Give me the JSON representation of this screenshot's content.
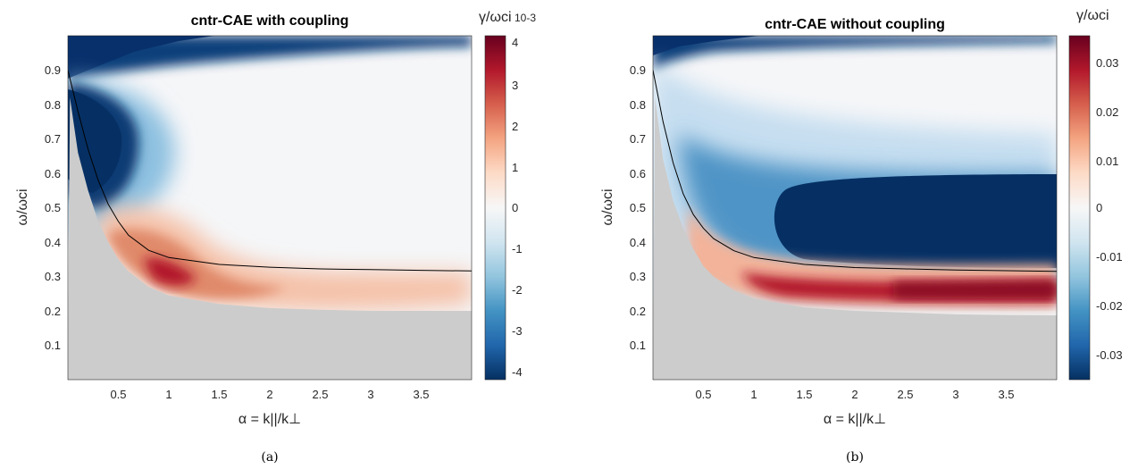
{
  "chart_data": [
    {
      "type": "heatmap",
      "panel": "(a)",
      "title": "cntr-CAE with coupling",
      "xlabel": "α = k||/k⊥",
      "ylabel": "ω/ωci",
      "xlim": [
        0,
        4
      ],
      "ylim": [
        0,
        1
      ],
      "xticks": [
        "0.5",
        "1",
        "1.5",
        "2",
        "2.5",
        "3",
        "3.5"
      ],
      "yticks": [
        "0.1",
        "0.2",
        "0.3",
        "0.4",
        "0.5",
        "0.6",
        "0.7",
        "0.8",
        "0.9"
      ],
      "colorbar": {
        "label": "γ/ωci",
        "exponent": "10-3",
        "range": [
          -4.2,
          4.2
        ],
        "ticks": [
          "4",
          "3",
          "2",
          "1",
          "0",
          "-1",
          "-2",
          "-3",
          "-4"
        ],
        "colormap": [
          "#053061",
          "#2166ac",
          "#4393c3",
          "#92c5de",
          "#d1e5f0",
          "#f7f7f7",
          "#fddbc7",
          "#f4a582",
          "#d6604d",
          "#b2182b",
          "#67001f"
        ]
      },
      "features": [
        {
          "region": "strongly damped lobe",
          "x": [
            0.0,
            0.8
          ],
          "y": [
            0.55,
            0.9
          ],
          "value": -4.2
        },
        {
          "region": "damped band near top",
          "x": [
            0.0,
            4.0
          ],
          "y": [
            0.93,
            1.0
          ],
          "value": -4.2
        },
        {
          "region": "unstable band",
          "x": [
            0.4,
            4.0
          ],
          "y": [
            0.22,
            0.5
          ],
          "peak": {
            "x": 0.95,
            "y": 0.32,
            "value": 4.0
          }
        },
        {
          "region": "no solution",
          "color": "#cccccc"
        }
      ],
      "black_curve": {
        "x": [
          0.0,
          0.1,
          0.2,
          0.3,
          0.4,
          0.5,
          0.6,
          0.8,
          1.0,
          1.5,
          2.0,
          2.5,
          3.0,
          3.5,
          4.0
        ],
        "y": [
          0.9,
          0.78,
          0.67,
          0.58,
          0.51,
          0.46,
          0.42,
          0.376,
          0.355,
          0.335,
          0.327,
          0.322,
          0.32,
          0.318,
          0.316
        ]
      },
      "boundary": {
        "x": [
          0.02,
          0.1,
          0.2,
          0.3,
          0.4,
          0.5,
          0.6,
          0.8,
          1.0,
          1.5,
          2.0,
          2.5,
          3.0,
          3.5,
          4.0
        ],
        "y": [
          0.82,
          0.66,
          0.55,
          0.46,
          0.4,
          0.35,
          0.315,
          0.27,
          0.245,
          0.22,
          0.208,
          0.203,
          0.2,
          0.2,
          0.2
        ]
      },
      "caption": "(a)"
    },
    {
      "type": "heatmap",
      "panel": "(b)",
      "title": "cntr-CAE without coupling",
      "xlabel": "α = k||/k⊥",
      "ylabel": "ω/ωci",
      "xlim": [
        0,
        4
      ],
      "ylim": [
        0,
        1
      ],
      "xticks": [
        "0.5",
        "1",
        "1.5",
        "2",
        "2.5",
        "3",
        "3.5"
      ],
      "yticks": [
        "0.1",
        "0.2",
        "0.3",
        "0.4",
        "0.5",
        "0.6",
        "0.7",
        "0.8",
        "0.9"
      ],
      "colorbar": {
        "label": "γ/ωci",
        "range": [
          -0.035,
          0.035
        ],
        "ticks": [
          "0.03",
          "0.02",
          "0.01",
          "0",
          "-0.01",
          "-0.02",
          "-0.03"
        ],
        "colormap": [
          "#053061",
          "#2166ac",
          "#4393c3",
          "#92c5de",
          "#d1e5f0",
          "#f7f7f7",
          "#fddbc7",
          "#f4a582",
          "#d6604d",
          "#b2182b",
          "#67001f"
        ]
      },
      "features": [
        {
          "region": "damped band near top",
          "x": [
            0.0,
            4.0
          ],
          "y": [
            0.97,
            1.0
          ],
          "value": -0.035
        },
        {
          "region": "strongly damped region",
          "x": [
            1.0,
            4.0
          ],
          "y": [
            0.35,
            0.6
          ],
          "value": -0.035
        },
        {
          "region": "unstable band",
          "x": [
            0.2,
            4.0
          ],
          "y": [
            0.21,
            0.33
          ],
          "peak": {
            "x": 3.7,
            "y": 0.26,
            "value": 0.033
          }
        },
        {
          "region": "no solution",
          "color": "#cccccc"
        }
      ],
      "black_curve": {
        "x": [
          0.0,
          0.1,
          0.2,
          0.3,
          0.4,
          0.5,
          0.6,
          0.8,
          1.0,
          1.5,
          2.0,
          2.5,
          3.0,
          3.5,
          4.0
        ],
        "y": [
          0.9,
          0.75,
          0.63,
          0.54,
          0.48,
          0.44,
          0.41,
          0.375,
          0.355,
          0.335,
          0.326,
          0.322,
          0.319,
          0.317,
          0.315
        ]
      },
      "boundary": {
        "x": [
          0.02,
          0.1,
          0.2,
          0.3,
          0.4,
          0.5,
          0.6,
          0.8,
          1.0,
          1.5,
          2.0,
          2.5,
          3.0,
          3.5,
          4.0
        ],
        "y": [
          0.82,
          0.64,
          0.52,
          0.44,
          0.38,
          0.33,
          0.3,
          0.26,
          0.236,
          0.21,
          0.2,
          0.195,
          0.19,
          0.188,
          0.187
        ]
      },
      "caption": "(b)"
    }
  ]
}
